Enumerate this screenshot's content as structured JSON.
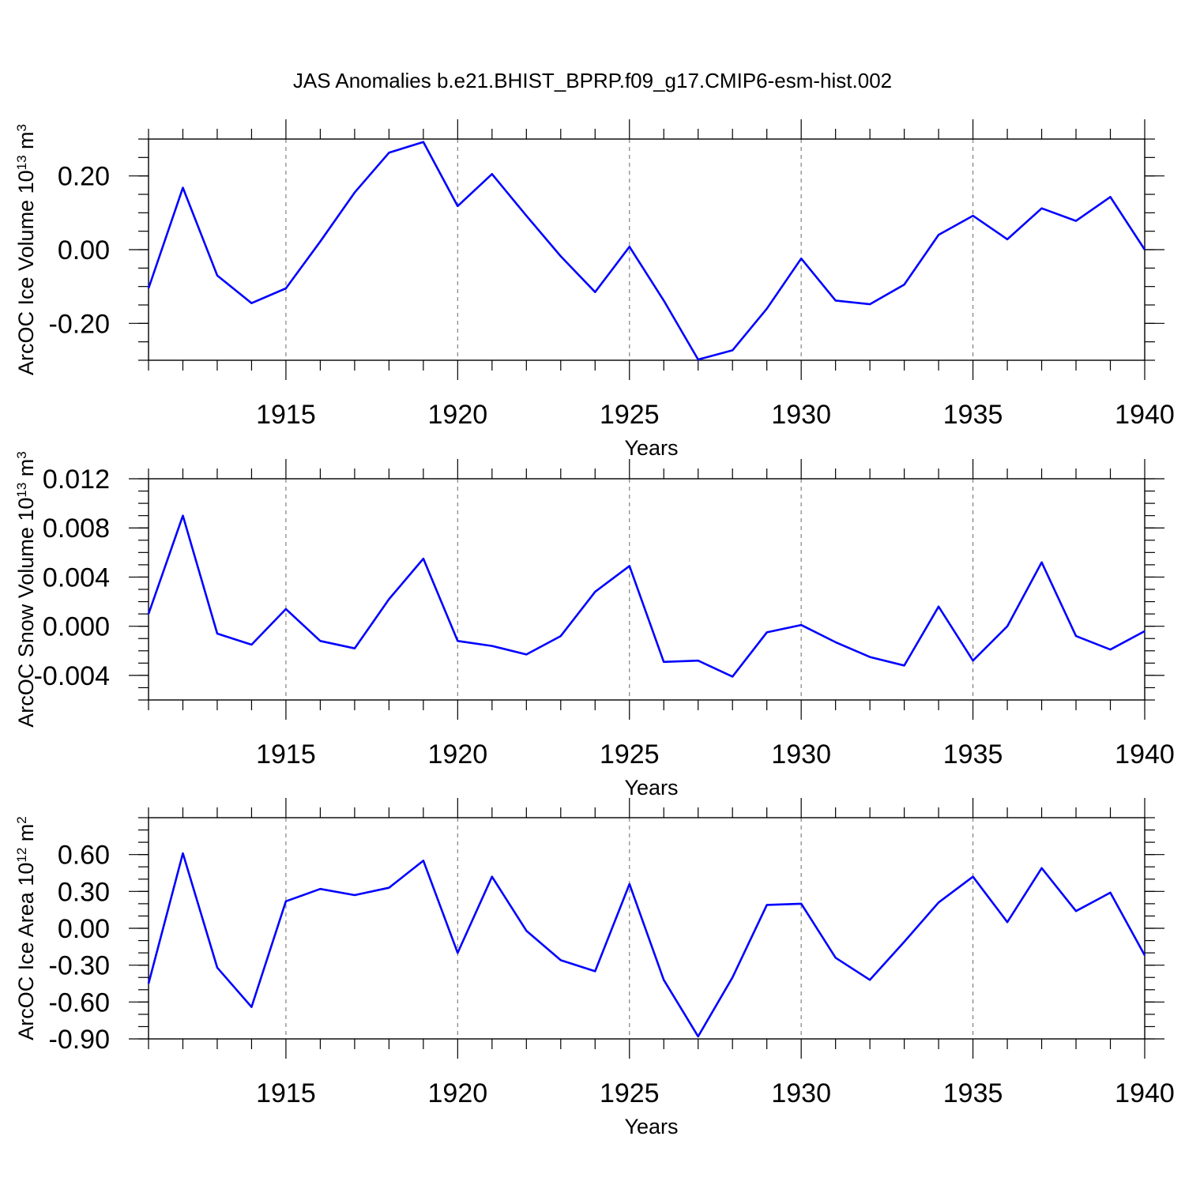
{
  "figure_title": "JAS Anomalies b.e21.BHIST_BPRP.f09_g17.CMIP6-esm-hist.002",
  "colors": {
    "line": "#0000ff",
    "axis": "#000000",
    "grid": "#808080"
  },
  "chart_data": [
    {
      "type": "line",
      "ylabel_main": "ArcOC Ice Volume 10",
      "ylabel_exp": "13",
      "ylabel_unit": " m",
      "ylabel_unit_exp": "3",
      "xlabel": "Years",
      "xlim": [
        1911,
        1940
      ],
      "ylim": [
        -0.3,
        0.3
      ],
      "x_ticks": [
        "1915",
        "1920",
        "1925",
        "1930",
        "1935",
        "1940"
      ],
      "y_ticks": [
        "0.20",
        "0.00",
        "-0.20"
      ],
      "y_tick_values": [
        0.2,
        0.0,
        -0.2
      ],
      "y_minor_step": 0.05,
      "grid_x": true,
      "x": [
        1911,
        1912,
        1913,
        1914,
        1915,
        1916,
        1917,
        1918,
        1919,
        1920,
        1921,
        1922,
        1923,
        1924,
        1925,
        1926,
        1927,
        1928,
        1929,
        1930,
        1931,
        1932,
        1933,
        1934,
        1935,
        1936,
        1937,
        1938,
        1939,
        1940
      ],
      "series": [
        {
          "name": "ArcOC Ice Volume",
          "values": [
            -0.105,
            0.168,
            -0.07,
            -0.145,
            -0.105,
            0.022,
            0.155,
            0.263,
            0.292,
            0.118,
            0.205,
            0.092,
            -0.018,
            -0.115,
            0.008,
            -0.138,
            -0.298,
            -0.273,
            -0.16,
            -0.024,
            -0.138,
            -0.148,
            -0.095,
            0.04,
            0.092,
            0.028,
            0.112,
            0.078,
            0.143,
            0.0
          ]
        }
      ]
    },
    {
      "type": "line",
      "ylabel_main": "ArcOC Snow Volume 10",
      "ylabel_exp": "13",
      "ylabel_unit": " m",
      "ylabel_unit_exp": "3",
      "xlabel": "Years",
      "xlim": [
        1911,
        1940
      ],
      "ylim": [
        -0.006,
        0.012
      ],
      "x_ticks": [
        "1915",
        "1920",
        "1925",
        "1930",
        "1935",
        "1940"
      ],
      "y_ticks": [
        "0.012",
        "0.008",
        "0.004",
        "0.000",
        "-0.004"
      ],
      "y_tick_values": [
        0.012,
        0.008,
        0.004,
        0.0,
        -0.004
      ],
      "y_minor_step": 0.001,
      "grid_x": true,
      "x": [
        1911,
        1912,
        1913,
        1914,
        1915,
        1916,
        1917,
        1918,
        1919,
        1920,
        1921,
        1922,
        1923,
        1924,
        1925,
        1926,
        1927,
        1928,
        1929,
        1930,
        1931,
        1932,
        1933,
        1934,
        1935,
        1936,
        1937,
        1938,
        1939,
        1940
      ],
      "series": [
        {
          "name": "ArcOC Snow Volume",
          "values": [
            0.001,
            0.009,
            -0.0006,
            -0.0015,
            0.0014,
            -0.0012,
            -0.0018,
            0.0022,
            0.0055,
            -0.0012,
            -0.0016,
            -0.0023,
            -0.0008,
            0.0028,
            0.0049,
            -0.0029,
            -0.0028,
            -0.0041,
            -0.0005,
            0.0001,
            -0.0013,
            -0.0025,
            -0.0032,
            0.0016,
            -0.0028,
            0.0,
            0.0052,
            -0.0008,
            -0.0019,
            -0.0004
          ]
        }
      ]
    },
    {
      "type": "line",
      "ylabel_main": "ArcOC Ice Area 10",
      "ylabel_exp": "12",
      "ylabel_unit": " m",
      "ylabel_unit_exp": "2",
      "xlabel": "Years",
      "xlim": [
        1911,
        1940
      ],
      "ylim": [
        -0.9,
        0.9
      ],
      "x_ticks": [
        "1915",
        "1920",
        "1925",
        "1930",
        "1935",
        "1940"
      ],
      "y_ticks": [
        "0.60",
        "0.30",
        "0.00",
        "-0.30",
        "-0.60",
        "-0.90"
      ],
      "y_tick_values": [
        0.6,
        0.3,
        0.0,
        -0.3,
        -0.6,
        -0.9
      ],
      "y_minor_step": 0.1,
      "grid_x": true,
      "x": [
        1911,
        1912,
        1913,
        1914,
        1915,
        1916,
        1917,
        1918,
        1919,
        1920,
        1921,
        1922,
        1923,
        1924,
        1925,
        1926,
        1927,
        1928,
        1929,
        1930,
        1931,
        1932,
        1933,
        1934,
        1935,
        1936,
        1937,
        1938,
        1939,
        1940
      ],
      "series": [
        {
          "name": "ArcOC Ice Area",
          "values": [
            -0.45,
            0.61,
            -0.32,
            -0.64,
            0.22,
            0.32,
            0.27,
            0.33,
            0.55,
            -0.2,
            0.42,
            -0.02,
            -0.26,
            -0.35,
            0.36,
            -0.42,
            -0.88,
            -0.4,
            0.19,
            0.2,
            -0.24,
            -0.42,
            -0.11,
            0.21,
            0.42,
            0.05,
            0.49,
            0.14,
            0.29,
            -0.22
          ]
        }
      ]
    }
  ]
}
